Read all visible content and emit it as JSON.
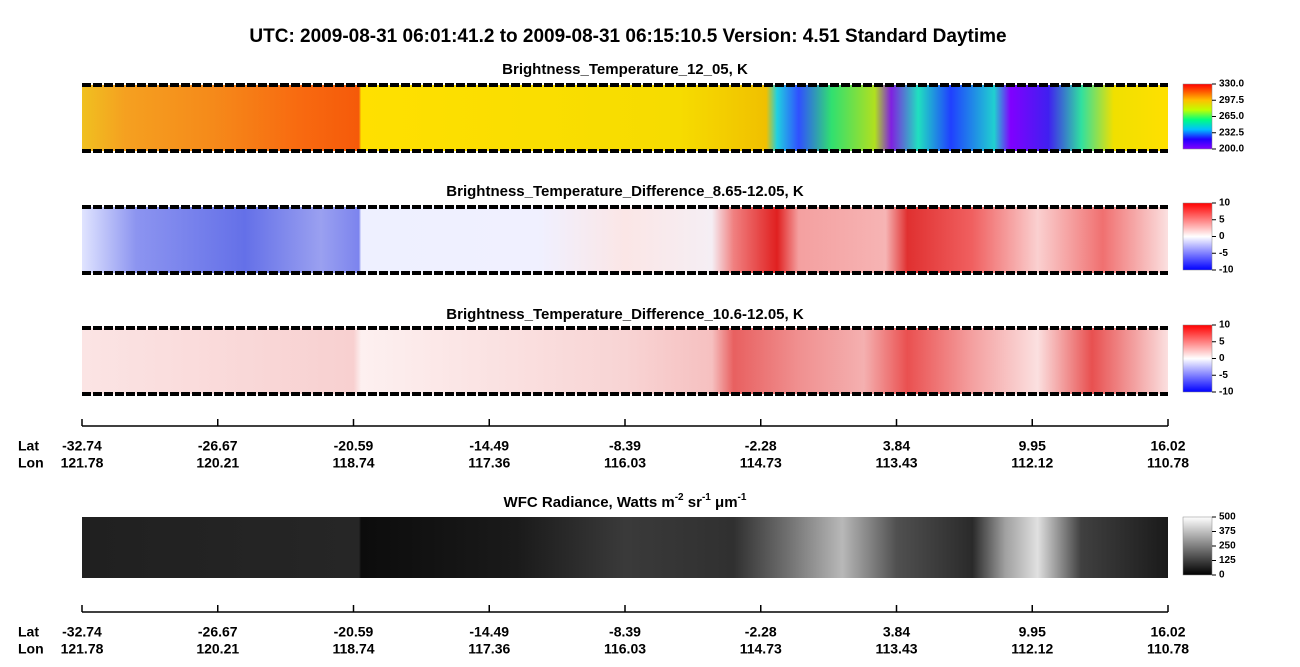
{
  "header": {
    "title": "UTC:  2009-08-31   06:01:41.2  to  2009-08-31   06:15:10.5    Version: 4.51  Standard Daytime"
  },
  "chart_data": [
    {
      "type": "image-strip",
      "title": "Brightness_Temperature_12_05, K",
      "colormap": "rainbow",
      "ylim": [
        200,
        330
      ],
      "yticks": [
        {
          "value": 200,
          "label": "200.0"
        },
        {
          "value": 232.5,
          "label": "232.5"
        },
        {
          "value": 265,
          "label": "265.0"
        },
        {
          "value": 297.5,
          "label": "297.5"
        },
        {
          "value": 330,
          "label": "330.0"
        }
      ]
    },
    {
      "type": "image-strip",
      "title": "Brightness_Temperature_Difference_8.65-12.05, K",
      "colormap": "blue-white-red",
      "ylim": [
        -10,
        10
      ],
      "yticks": [
        -10,
        -5,
        0,
        5,
        10
      ]
    },
    {
      "type": "image-strip",
      "title": "Brightness_Temperature_Difference_10.6-12.05, K",
      "colormap": "blue-white-red",
      "ylim": [
        -10,
        10
      ],
      "yticks": [
        -10,
        -5,
        0,
        5,
        10
      ]
    },
    {
      "type": "track-axis",
      "row_labels": [
        "Lat",
        "Lon"
      ],
      "lat": [
        -32.74,
        -26.67,
        -20.59,
        -14.49,
        -8.39,
        -2.28,
        3.84,
        9.95,
        16.02
      ],
      "lon": [
        121.78,
        120.21,
        118.74,
        117.36,
        116.03,
        114.73,
        113.43,
        112.12,
        110.78
      ]
    },
    {
      "type": "image-strip",
      "title_parts": [
        {
          "text": "WFC Radiance, Watts m"
        },
        {
          "sup": "-2"
        },
        {
          "text": " sr"
        },
        {
          "sup": "-1"
        },
        {
          "text": " μm"
        },
        {
          "sup": "-1"
        }
      ],
      "colormap": "gray",
      "ylim": [
        0,
        500
      ],
      "yticks": [
        0,
        125,
        250,
        375,
        500
      ]
    },
    {
      "type": "track-axis",
      "row_labels": [
        "Lat",
        "Lon"
      ],
      "lat": [
        -32.74,
        -26.67,
        -20.59,
        -14.49,
        -8.39,
        -2.28,
        3.84,
        9.95,
        16.02
      ],
      "lon": [
        121.78,
        120.21,
        118.74,
        117.36,
        116.03,
        114.73,
        113.43,
        112.12,
        110.78
      ]
    }
  ]
}
